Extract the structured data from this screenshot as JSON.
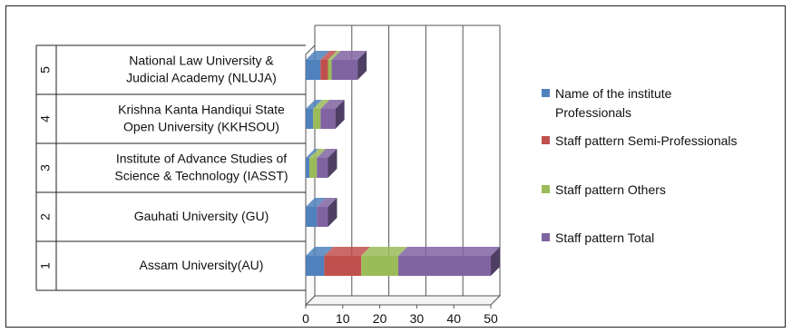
{
  "chart_data": {
    "type": "bar",
    "orientation": "horizontal",
    "stacked": true,
    "three_d": true,
    "categories": [
      {
        "index": "1",
        "name": "Assam University(AU)"
      },
      {
        "index": "2",
        "name": "Gauhati University (GU)"
      },
      {
        "index": "3",
        "name": "Institute of Advance Studies of Science & Technology (IASST)"
      },
      {
        "index": "4",
        "name": "Krishna Kanta Handiqui State Open University (KKHSOU)"
      },
      {
        "index": "5",
        "name": "National Law University & Judicial Academy (NLUJA)"
      }
    ],
    "category_label_lines": [
      [
        "Assam University(AU)"
      ],
      [
        "Gauhati University (GU)"
      ],
      [
        "Institute of Advance Studies of",
        "Science & Technology (IASST)"
      ],
      [
        "Krishna Kanta Handiqui State",
        "Open University (KKHSOU)"
      ],
      [
        "National Law University &",
        "Judicial Academy (NLUJA)"
      ]
    ],
    "series": [
      {
        "name": "Name of the institute Professionals",
        "legend_lines": [
          "Name of the institute",
          "Professionals"
        ],
        "color": "#4F81BD",
        "values": [
          5,
          3,
          1,
          2,
          4
        ]
      },
      {
        "name": "Staff pattern Semi-Professionals",
        "legend_lines": [
          "Staff pattern Semi-Professionals"
        ],
        "color": "#C0504D",
        "values": [
          10,
          0,
          0,
          0,
          2
        ]
      },
      {
        "name": "Staff pattern Others",
        "legend_lines": [
          "Staff pattern Others"
        ],
        "color": "#9BBB59",
        "values": [
          10,
          0,
          2,
          2,
          1
        ]
      },
      {
        "name": "Staff pattern Total",
        "legend_lines": [
          "Staff pattern Total"
        ],
        "color": "#8064A2",
        "values": [
          25,
          3,
          3,
          4,
          7
        ]
      }
    ],
    "x_ticks": [
      "0",
      "10",
      "20",
      "30",
      "40",
      "50"
    ],
    "xlim": [
      0,
      50
    ],
    "grid": true,
    "legend_position": "right"
  }
}
